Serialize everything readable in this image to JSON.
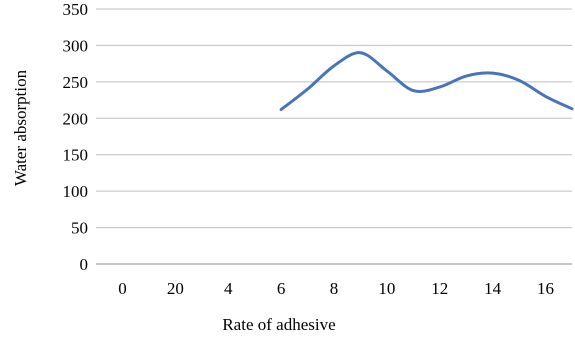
{
  "chart_data": {
    "type": "line",
    "title": "",
    "xlabel": "Rate of adhesive",
    "ylabel": "Water absorption",
    "x_tick_labels": [
      "0",
      "20",
      "4",
      "6",
      "8",
      "10",
      "12",
      "14",
      "16"
    ],
    "y_ticks": [
      0,
      50,
      100,
      150,
      200,
      250,
      300,
      350
    ],
    "ylim": [
      0,
      350
    ],
    "grid": "horizontal",
    "legend": "none",
    "series": [
      {
        "color": "#4a74b8",
        "x": [
          "6",
          "7",
          "8",
          "9",
          "10",
          "11",
          "12",
          "13",
          "14",
          "15",
          "16",
          "17"
        ],
        "values": [
          212,
          240,
          272,
          290,
          265,
          238,
          243,
          258,
          262,
          252,
          230,
          213
        ]
      }
    ]
  }
}
